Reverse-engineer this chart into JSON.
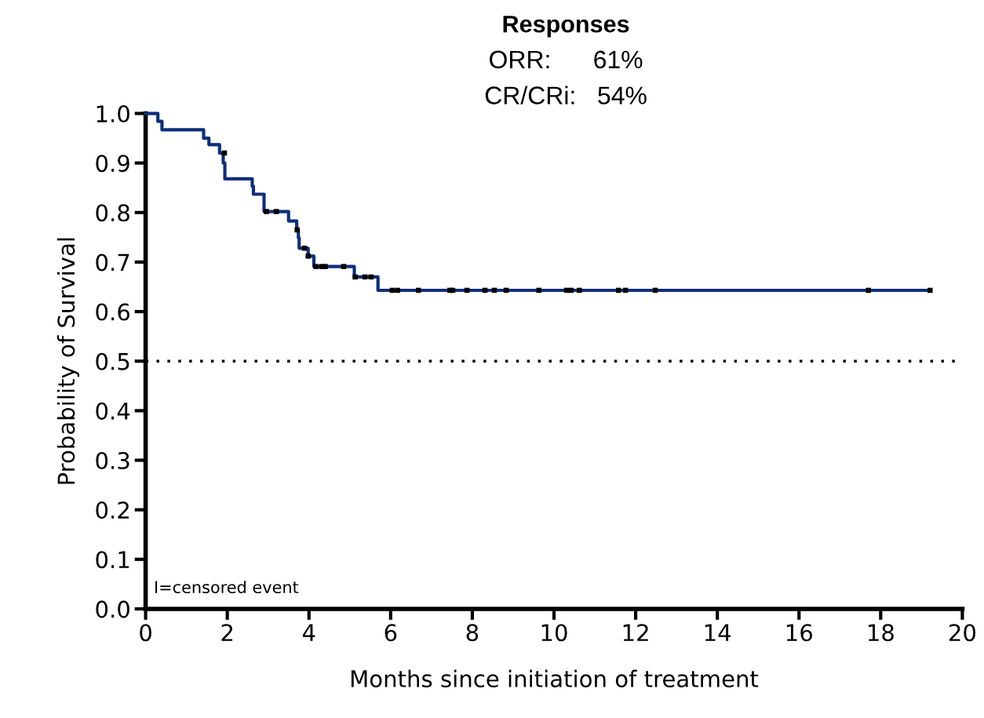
{
  "chart_data": {
    "type": "step",
    "title": "Responses",
    "xlabel": "Months since initiation of treatment",
    "ylabel": "Probability of Survival",
    "annotations": [
      "ORR:      61%",
      "CR/CRi:   54%",
      "I=censored event"
    ],
    "series": [
      {
        "color": "#0d2f7a",
        "x": [
          0,
          0.3,
          0.4,
          1.42,
          1.55,
          1.81,
          1.9,
          1.94,
          2.61,
          2.64,
          2.9,
          3.5,
          3.7,
          3.74,
          3.76,
          3.98,
          4.12,
          5.11,
          5.69,
          19.21
        ],
        "values": [
          1.0,
          0.984,
          0.967,
          0.95,
          0.937,
          0.92,
          0.9,
          0.868,
          0.853,
          0.837,
          0.802,
          0.783,
          0.765,
          0.749,
          0.728,
          0.712,
          0.691,
          0.67,
          0.643,
          0.643
        ]
      },
      {
        "type": "scatter",
        "marker": "square",
        "color": "#000000",
        "x": [
          1.93,
          2.96,
          3.2,
          3.71,
          3.89,
          3.98,
          4.17,
          4.31,
          4.4,
          4.85,
          5.13,
          5.37,
          5.52,
          6.04,
          6.17,
          6.68,
          7.45,
          7.52,
          7.87,
          8.31,
          8.54,
          8.83,
          9.63,
          10.31,
          10.42,
          10.62,
          11.58,
          11.75,
          12.48,
          17.7,
          19.21
        ],
        "values": [
          0.92,
          0.802,
          0.802,
          0.765,
          0.728,
          0.712,
          0.691,
          0.691,
          0.691,
          0.691,
          0.67,
          0.67,
          0.67,
          0.643,
          0.643,
          0.643,
          0.643,
          0.643,
          0.643,
          0.643,
          0.643,
          0.643,
          0.643,
          0.643,
          0.643,
          0.643,
          0.643,
          0.643,
          0.643,
          0.643,
          0.643
        ]
      }
    ],
    "xlim": [
      0,
      20
    ],
    "xticks": [
      0,
      2,
      4,
      6,
      8,
      10,
      12,
      14,
      16,
      18,
      20
    ],
    "ylim": [
      0,
      1.0
    ],
    "yticks": [
      {
        "value": 0,
        "label": "0.0"
      },
      {
        "value": 0.1,
        "label": "0.1"
      },
      {
        "value": 0.2,
        "label": "0.2"
      },
      {
        "value": 0.3,
        "label": "0.3"
      },
      {
        "value": 0.4,
        "label": "0.4"
      },
      {
        "value": 0.5,
        "label": "0.5"
      },
      {
        "value": 0.6,
        "label": "0.6"
      },
      {
        "value": 0.7,
        "label": "0.7"
      },
      {
        "value": 0.8,
        "label": "0.8"
      },
      {
        "value": 0.9,
        "label": "0.9"
      },
      {
        "value": 1.0,
        "label": "1.0"
      }
    ],
    "ref_lines": [
      {
        "axis": "y",
        "value": 0.5,
        "color": "#000000",
        "line_style": "dotted"
      }
    ],
    "grid": false,
    "legend": false
  }
}
